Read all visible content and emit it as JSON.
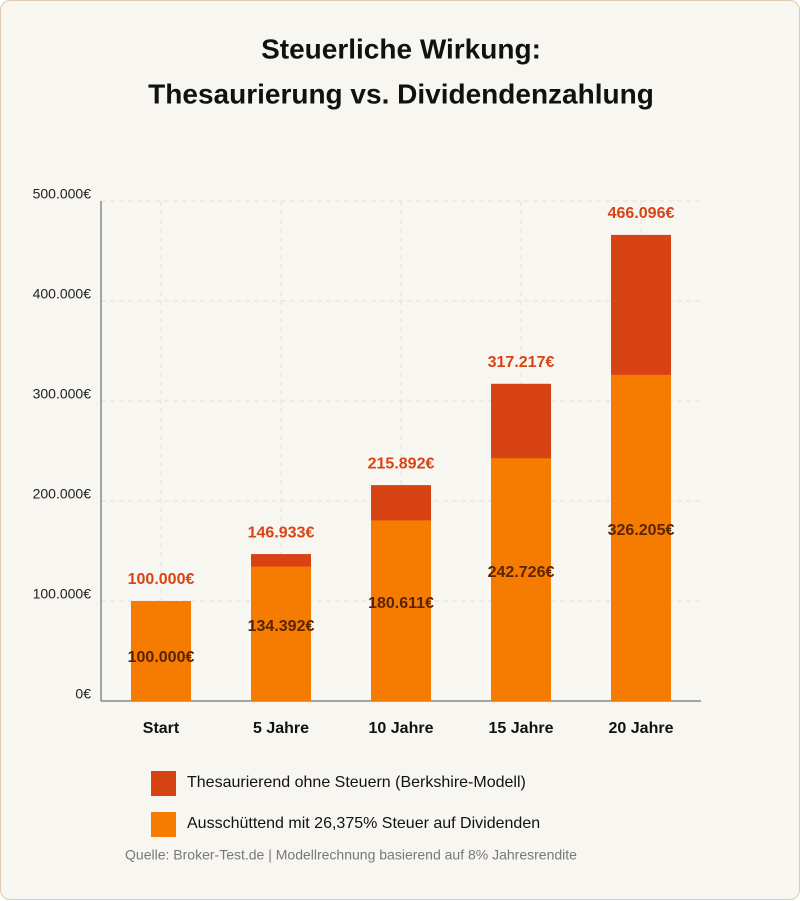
{
  "chart_data": {
    "type": "bar",
    "title": [
      "Steuerliche Wirkung:",
      "Thesaurierung vs. Dividendenzahlung"
    ],
    "categories": [
      "Start",
      "5 Jahre",
      "10 Jahre",
      "15 Jahre",
      "20 Jahre"
    ],
    "series": [
      {
        "name": "Thesaurierend ohne Steuern (Berkshire-Modell)",
        "color": "#d84315",
        "values": [
          100000,
          146933,
          215892,
          317217,
          466096
        ],
        "value_labels": [
          "100.000€",
          "146.933€",
          "215.892€",
          "317.217€",
          "466.096€"
        ]
      },
      {
        "name": "Ausschüttend mit 26,375% Steuer auf Dividenden",
        "color": "#f57c00",
        "values": [
          100000,
          134392,
          180611,
          242726,
          326205
        ],
        "value_labels": [
          "100.000€",
          "134.392€",
          "180.611€",
          "242.726€",
          "326.205€"
        ]
      }
    ],
    "overlap": true,
    "ylim": [
      0,
      500000
    ],
    "yticks": [
      {
        "value": 0,
        "label": "0€"
      },
      {
        "value": 100000,
        "label": "100.000€"
      },
      {
        "value": 200000,
        "label": "200.000€"
      },
      {
        "value": 300000,
        "label": "300.000€"
      },
      {
        "value": 400000,
        "label": "400.000€"
      },
      {
        "value": 500000,
        "label": "500.000€"
      }
    ],
    "grid": true,
    "source": "Quelle: Broker-Test.de | Modellrechnung basierend auf 8% Jahresrendite"
  }
}
